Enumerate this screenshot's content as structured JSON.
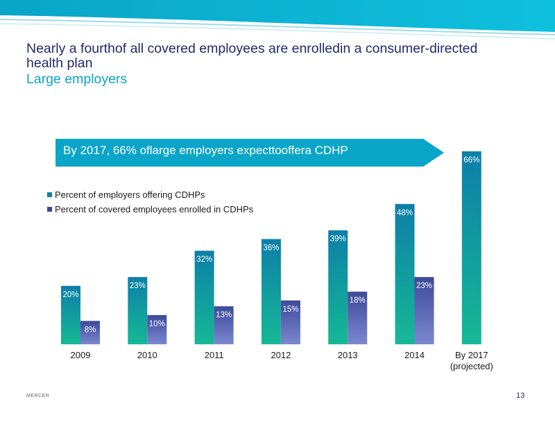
{
  "slide": {
    "title": "Nearly a fourthof all covered employees are enrolledin  a consumer-directed health  plan",
    "subtitle": "Large employers",
    "callout": "By 2017, 66% oflarge employers expecttooffera CDHP",
    "footer_brand": "MERCER",
    "page_number": "13"
  },
  "colors": {
    "title": "#1f2a6b",
    "subtitle": "#0aa5c8",
    "callout_bg": "#0aa5c8",
    "series1_top": "#0d7fa8",
    "series1_bottom": "#16b896",
    "series2_top": "#3d4a9a",
    "series2_bottom": "#7b88cf"
  },
  "chart_data": {
    "type": "bar",
    "title": "",
    "xlabel": "",
    "ylabel": "",
    "ylim": [
      0,
      70
    ],
    "grid": false,
    "legend_position": "top-left",
    "categories": [
      "2009",
      "2010",
      "2011",
      "2012",
      "2013",
      "2014",
      "By 2017\n(projected)"
    ],
    "series": [
      {
        "name": "Percent of employers offering CDHPs",
        "values": [
          20,
          23,
          32,
          36,
          39,
          48,
          66
        ],
        "labels": [
          "20%",
          "23%",
          "32%",
          "36%",
          "39%",
          "48%",
          "66%"
        ]
      },
      {
        "name": "Percent of covered employees enrolled in CDHPs",
        "values": [
          8,
          10,
          13,
          15,
          18,
          23,
          null
        ],
        "labels": [
          "8%",
          "10%",
          "13%",
          "15%",
          "18%",
          "23%",
          ""
        ]
      }
    ]
  }
}
